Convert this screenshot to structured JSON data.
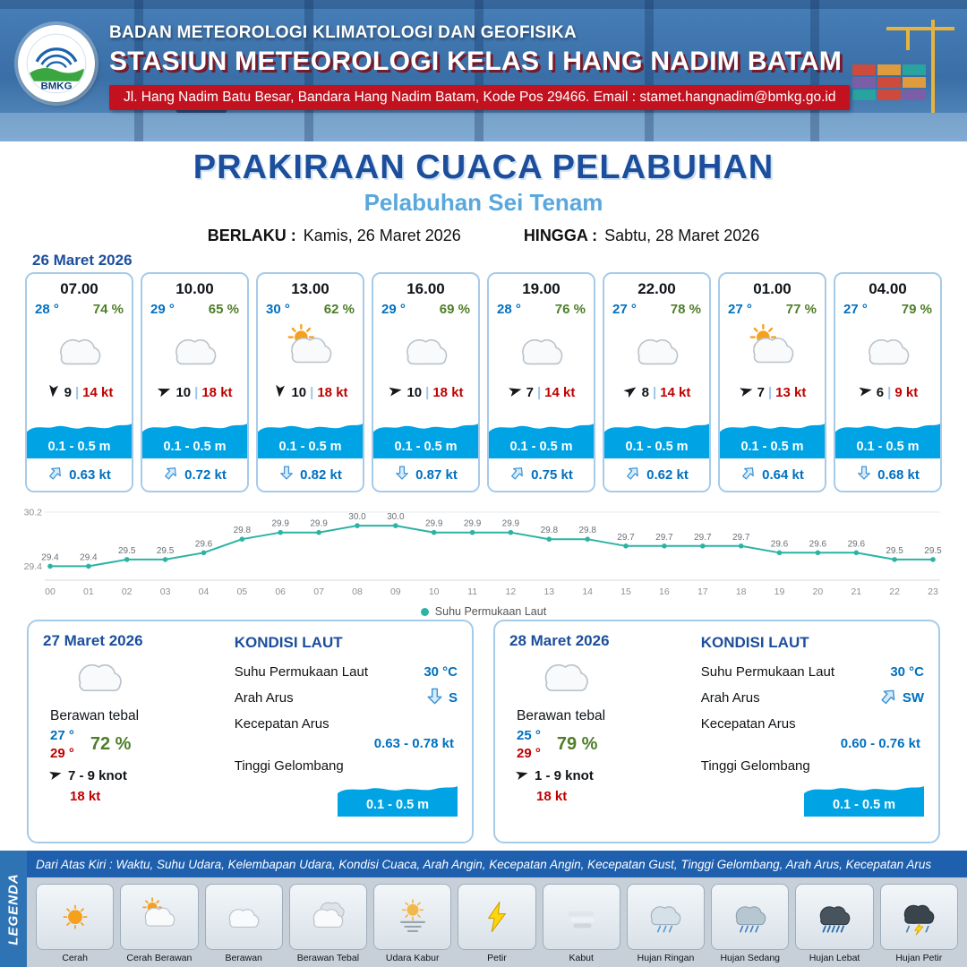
{
  "header": {
    "logo_text": "BMKG",
    "agency": "BADAN METEOROLOGI KLIMATOLOGI DAN GEOFISIKA",
    "station": "STASIUN METEOROLOGI KELAS I HANG NADIM BATAM",
    "address": "Jl. Hang Nadim Batu Besar, Bandara Hang Nadim Batam, Kode Pos 29466. Email : stamet.hangnadim@bmkg.go.id"
  },
  "title": {
    "main": "PRAKIRAAN CUACA PELABUHAN",
    "subtitle": "Pelabuhan Sei Tenam",
    "berlaku_label": "BERLAKU :",
    "berlaku_value": "Kamis, 26 Maret 2026",
    "hingga_label": "HINGGA :",
    "hingga_value": "Sabtu, 28 Maret 2026"
  },
  "forecast_date": "26 Maret 2026",
  "forecast_cards": [
    {
      "time": "07.00",
      "temp": "28 °",
      "humidity": "74 %",
      "icon": "cloud",
      "wind_deg": 185,
      "wind_speed": "9",
      "gust": "14 kt",
      "wave": "0.1 - 0.5 m",
      "current": "0.63 kt",
      "current_deg": 40
    },
    {
      "time": "10.00",
      "temp": "29 °",
      "humidity": "65 %",
      "icon": "cloud",
      "wind_deg": 70,
      "wind_speed": "10",
      "gust": "18 kt",
      "wave": "0.1 - 0.5 m",
      "current": "0.72 kt",
      "current_deg": 40
    },
    {
      "time": "13.00",
      "temp": "30 °",
      "humidity": "62 %",
      "icon": "sun-cloud",
      "wind_deg": 185,
      "wind_speed": "10",
      "gust": "18 kt",
      "wave": "0.1 - 0.5 m",
      "current": "0.82 kt",
      "current_deg": 180
    },
    {
      "time": "16.00",
      "temp": "29 °",
      "humidity": "69 %",
      "icon": "cloud",
      "wind_deg": 80,
      "wind_speed": "10",
      "gust": "18 kt",
      "wave": "0.1 - 0.5 m",
      "current": "0.87 kt",
      "current_deg": 180
    },
    {
      "time": "19.00",
      "temp": "28 °",
      "humidity": "76 %",
      "icon": "cloud",
      "wind_deg": 75,
      "wind_speed": "7",
      "gust": "14 kt",
      "wave": "0.1 - 0.5 m",
      "current": "0.75 kt",
      "current_deg": 40
    },
    {
      "time": "22.00",
      "temp": "27 °",
      "humidity": "78 %",
      "icon": "cloud",
      "wind_deg": 55,
      "wind_speed": "8",
      "gust": "14 kt",
      "wave": "0.1 - 0.5 m",
      "current": "0.62 kt",
      "current_deg": 40
    },
    {
      "time": "01.00",
      "temp": "27 °",
      "humidity": "77 %",
      "icon": "sun-cloud",
      "wind_deg": 75,
      "wind_speed": "7",
      "gust": "13 kt",
      "wave": "0.1 - 0.5 m",
      "current": "0.64 kt",
      "current_deg": 40
    },
    {
      "time": "04.00",
      "temp": "27 °",
      "humidity": "79 %",
      "icon": "cloud",
      "wind_deg": 80,
      "wind_speed": "6",
      "gust": "9 kt",
      "wave": "0.1 - 0.5 m",
      "current": "0.68 kt",
      "current_deg": 180
    }
  ],
  "chart_data": {
    "type": "line",
    "legend": "Suhu Permukaan Laut",
    "x": [
      "00",
      "01",
      "02",
      "03",
      "04",
      "05",
      "06",
      "07",
      "08",
      "09",
      "10",
      "11",
      "12",
      "13",
      "14",
      "15",
      "16",
      "17",
      "18",
      "19",
      "20",
      "21",
      "22",
      "23"
    ],
    "values": [
      29.4,
      29.4,
      29.5,
      29.5,
      29.6,
      29.8,
      29.9,
      29.9,
      30.0,
      30.0,
      29.9,
      29.9,
      29.9,
      29.8,
      29.8,
      29.7,
      29.7,
      29.7,
      29.7,
      29.6,
      29.6,
      29.6,
      29.5,
      29.5
    ],
    "ylim": [
      29.3,
      30.2
    ],
    "yticks": [
      29.4,
      30.2
    ],
    "color": "#2bb3a3",
    "legend_position": "bottom",
    "grid": "minimal"
  },
  "day_cards": [
    {
      "date": "27 Maret 2026",
      "icon": "cloud",
      "condition": "Berawan tebal",
      "temp_min": "27 °",
      "temp_max": "29 °",
      "humidity": "72 %",
      "wind_deg": 75,
      "wind_range": "7 - 9 knot",
      "gust": "18 kt",
      "sea": {
        "title": "KONDISI LAUT",
        "sst_label": "Suhu Permukaan Laut",
        "sst": "30 °C",
        "dir_label": "Arah Arus",
        "dir": "S",
        "dir_deg": 180,
        "speed_label": "Kecepatan Arus",
        "speed": "0.63 - 0.78 kt",
        "wave_label": "Tinggi Gelombang",
        "wave": "0.1 - 0.5 m"
      }
    },
    {
      "date": "28 Maret 2026",
      "icon": "cloud",
      "condition": "Berawan tebal",
      "temp_min": "25 °",
      "temp_max": "29 °",
      "humidity": "79 %",
      "wind_deg": 75,
      "wind_range": "1 - 9 knot",
      "gust": "18 kt",
      "sea": {
        "title": "KONDISI LAUT",
        "sst_label": "Suhu Permukaan Laut",
        "sst": "30 °C",
        "dir_label": "Arah Arus",
        "dir": "SW",
        "dir_deg": 40,
        "speed_label": "Kecepatan Arus",
        "speed": "0.60 - 0.76 kt",
        "wave_label": "Tinggi Gelombang",
        "wave": "0.1 - 0.5 m"
      }
    }
  ],
  "legend": {
    "vertical_label": "LEGENDA",
    "note": "Dari Atas Kiri : Waktu, Suhu Udara, Kelembapan Udara, Kondisi Cuaca, Arah Angin, Kecepatan Angin, Kecepatan Gust, Tinggi Gelombang, Arah Arus, Kecepatan Arus",
    "items": [
      {
        "label": "Cerah",
        "icon": "sun"
      },
      {
        "label": "Cerah Berawan",
        "icon": "sun-cloud"
      },
      {
        "label": "Berawan",
        "icon": "cloud"
      },
      {
        "label": "Berawan Tebal",
        "icon": "clouds"
      },
      {
        "label": "Udara Kabur",
        "icon": "haze"
      },
      {
        "label": "Petir",
        "icon": "lightning"
      },
      {
        "label": "Kabut",
        "icon": "fog"
      },
      {
        "label": "Hujan Ringan",
        "icon": "rain-light"
      },
      {
        "label": "Hujan Sedang",
        "icon": "rain-medium"
      },
      {
        "label": "Hujan Lebat",
        "icon": "rain-heavy"
      },
      {
        "label": "Hujan Petir",
        "icon": "storm"
      }
    ]
  },
  "colors": {
    "primary_blue": "#1c4e9c",
    "subtitle_blue": "#58a7dd",
    "temp_blue": "#0070c0",
    "humidity_green": "#4e7e28",
    "gust_red": "#c00000",
    "wave_blue": "#00a3e4",
    "sst_line_teal": "#2bb3a3",
    "header_red": "#c2121f",
    "legend_bar_blue": "#1e5fae"
  }
}
